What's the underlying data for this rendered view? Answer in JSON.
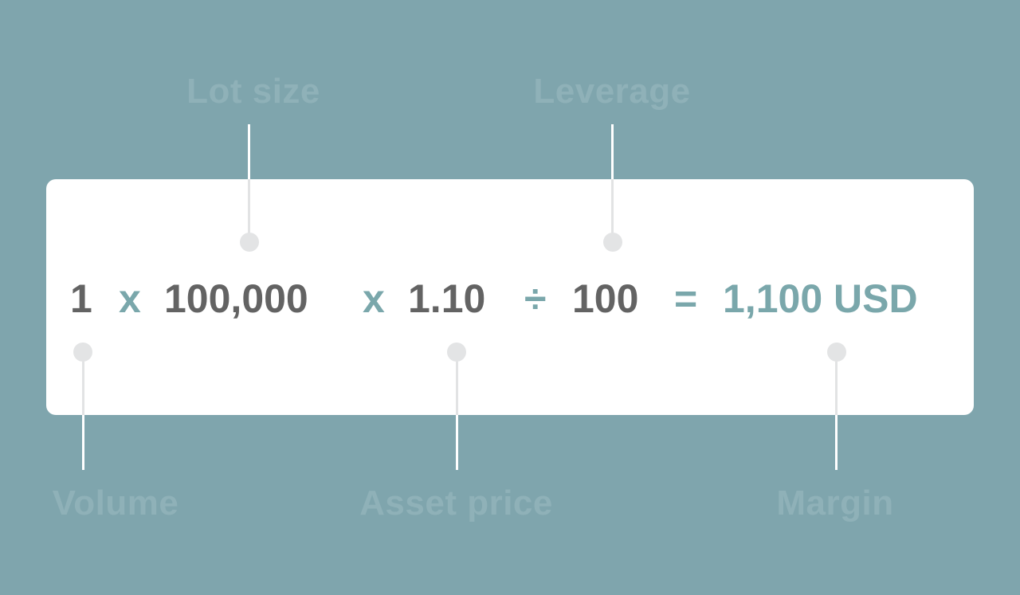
{
  "formula": {
    "volume_value": "1",
    "op_multiply_1": "x",
    "lot_size_value": "100,000",
    "op_multiply_2": "x",
    "asset_price_value": "1.10",
    "op_divide": "÷",
    "leverage_value": "100",
    "op_equals": "=",
    "margin_value": "1,100 USD"
  },
  "labels": {
    "lot_size": "Lot size",
    "leverage": "Leverage",
    "volume": "Volume",
    "asset_price": "Asset price",
    "margin": "Margin"
  },
  "colors": {
    "background": "#7fa5ad",
    "card": "#ffffff",
    "number": "#636363",
    "operator": "#7aa7ab",
    "label": "#8fb1b8",
    "connector": "#e2e3e4"
  }
}
